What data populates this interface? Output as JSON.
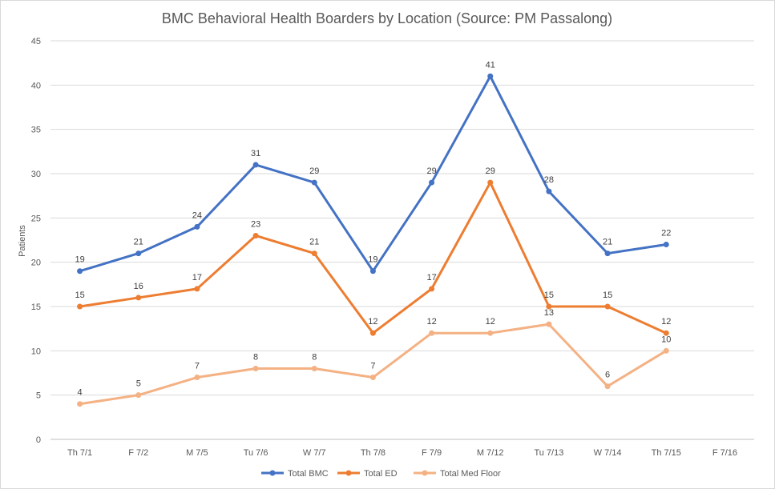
{
  "chart_data": {
    "type": "line",
    "title": "BMC Behavioral Health Boarders by Location (Source: PM Passalong)",
    "xlabel": "",
    "ylabel": "Patients",
    "ylim": [
      0,
      45
    ],
    "yticks": [
      0,
      5,
      10,
      15,
      20,
      25,
      30,
      35,
      40,
      45
    ],
    "categories": [
      "Th 7/1",
      "F 7/2",
      "M 7/5",
      "Tu 7/6",
      "W 7/7",
      "Th 7/8",
      "F 7/9",
      "M 7/12",
      "Tu 7/13",
      "W 7/14",
      "Th 7/15",
      "F 7/16"
    ],
    "grid": true,
    "legend_position": "bottom",
    "series": [
      {
        "name": "Total BMC",
        "color": "#4472c4",
        "values": [
          19,
          21,
          24,
          31,
          29,
          19,
          29,
          41,
          28,
          21,
          22,
          null
        ]
      },
      {
        "name": "Total ED",
        "color": "#ed7d31",
        "values": [
          15,
          16,
          17,
          23,
          21,
          12,
          17,
          29,
          15,
          15,
          12,
          null
        ]
      },
      {
        "name": "Total Med Floor",
        "color": "#f4b183",
        "values": [
          4,
          5,
          7,
          8,
          8,
          7,
          12,
          12,
          13,
          6,
          10,
          null
        ]
      }
    ]
  }
}
